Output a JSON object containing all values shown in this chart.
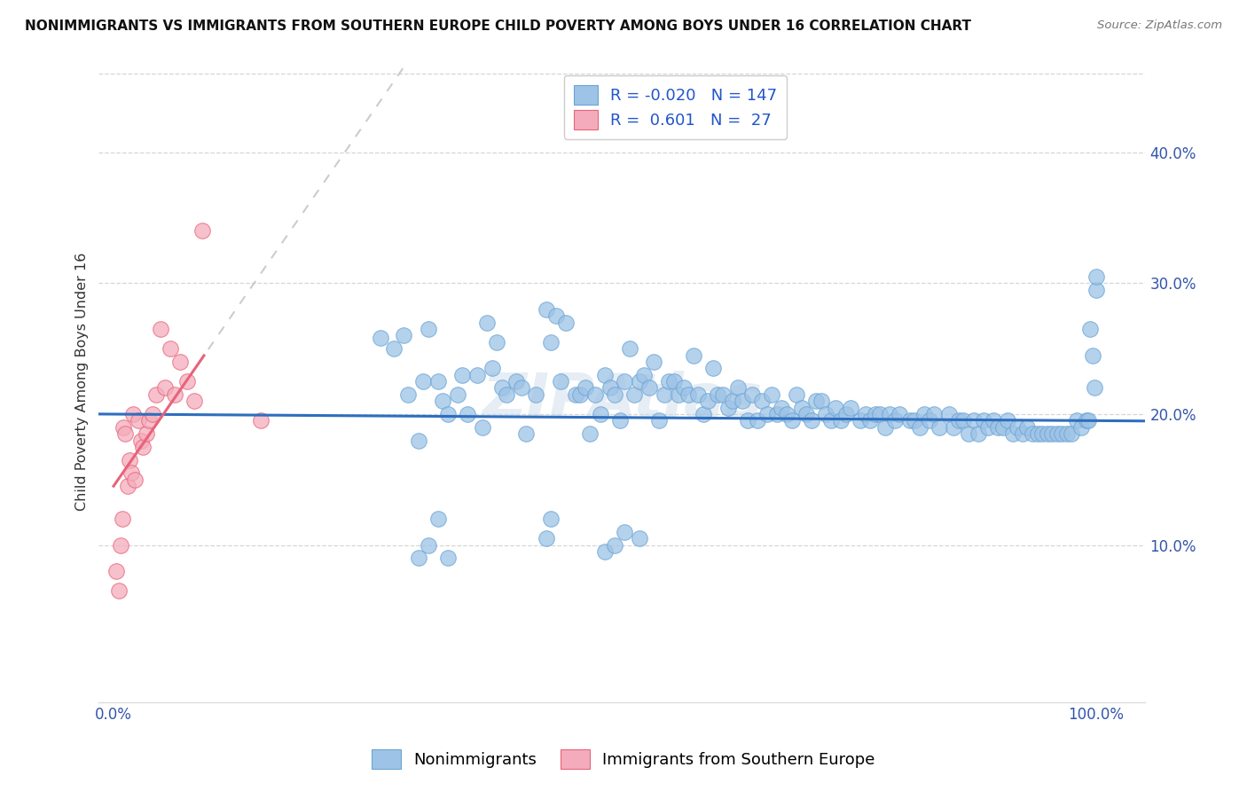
{
  "title": "NONIMMIGRANTS VS IMMIGRANTS FROM SOUTHERN EUROPE CHILD POVERTY AMONG BOYS UNDER 16 CORRELATION CHART",
  "source": "Source: ZipAtlas.com",
  "ylabel": "Child Poverty Among Boys Under 16",
  "blue_R": -0.02,
  "blue_N": 147,
  "pink_R": 0.601,
  "pink_N": 27,
  "blue_color": "#9DC3E6",
  "pink_color": "#F4ACBC",
  "blue_line_color": "#2E6EBF",
  "pink_line_color": "#E8637A",
  "blue_edge_color": "#6BA4D4",
  "pink_edge_color": "#E8637A",
  "background_color": "#ffffff",
  "grid_color": "#cccccc",
  "watermark": "ZIPAtlas",
  "blue_x": [
    0.272,
    0.285,
    0.295,
    0.3,
    0.31,
    0.315,
    0.32,
    0.33,
    0.335,
    0.34,
    0.35,
    0.355,
    0.36,
    0.37,
    0.375,
    0.38,
    0.385,
    0.39,
    0.395,
    0.4,
    0.41,
    0.415,
    0.42,
    0.43,
    0.44,
    0.445,
    0.45,
    0.455,
    0.46,
    0.47,
    0.475,
    0.48,
    0.485,
    0.49,
    0.495,
    0.5,
    0.505,
    0.51,
    0.515,
    0.52,
    0.525,
    0.53,
    0.535,
    0.54,
    0.545,
    0.55,
    0.555,
    0.56,
    0.565,
    0.57,
    0.575,
    0.58,
    0.585,
    0.59,
    0.595,
    0.6,
    0.605,
    0.61,
    0.615,
    0.62,
    0.625,
    0.63,
    0.635,
    0.64,
    0.645,
    0.65,
    0.655,
    0.66,
    0.665,
    0.67,
    0.675,
    0.68,
    0.685,
    0.69,
    0.695,
    0.7,
    0.705,
    0.71,
    0.715,
    0.72,
    0.725,
    0.73,
    0.735,
    0.74,
    0.745,
    0.75,
    0.76,
    0.765,
    0.77,
    0.775,
    0.78,
    0.785,
    0.79,
    0.795,
    0.8,
    0.81,
    0.815,
    0.82,
    0.825,
    0.83,
    0.835,
    0.84,
    0.85,
    0.855,
    0.86,
    0.865,
    0.87,
    0.875,
    0.88,
    0.885,
    0.89,
    0.895,
    0.9,
    0.905,
    0.91,
    0.915,
    0.92,
    0.925,
    0.93,
    0.935,
    0.94,
    0.945,
    0.95,
    0.955,
    0.96,
    0.965,
    0.97,
    0.975,
    0.98,
    0.985,
    0.99,
    0.992,
    0.994,
    0.996,
    0.998,
    1.0,
    1.0,
    0.31,
    0.32,
    0.33,
    0.34,
    0.44,
    0.445,
    0.5,
    0.51,
    0.52,
    0.535
  ],
  "blue_y": [
    0.258,
    0.25,
    0.26,
    0.215,
    0.18,
    0.225,
    0.265,
    0.225,
    0.21,
    0.2,
    0.215,
    0.23,
    0.2,
    0.23,
    0.19,
    0.27,
    0.235,
    0.255,
    0.22,
    0.215,
    0.225,
    0.22,
    0.185,
    0.215,
    0.28,
    0.255,
    0.275,
    0.225,
    0.27,
    0.215,
    0.215,
    0.22,
    0.185,
    0.215,
    0.2,
    0.23,
    0.22,
    0.215,
    0.195,
    0.225,
    0.25,
    0.215,
    0.225,
    0.23,
    0.22,
    0.24,
    0.195,
    0.215,
    0.225,
    0.225,
    0.215,
    0.22,
    0.215,
    0.245,
    0.215,
    0.2,
    0.21,
    0.235,
    0.215,
    0.215,
    0.205,
    0.21,
    0.22,
    0.21,
    0.195,
    0.215,
    0.195,
    0.21,
    0.2,
    0.215,
    0.2,
    0.205,
    0.2,
    0.195,
    0.215,
    0.205,
    0.2,
    0.195,
    0.21,
    0.21,
    0.2,
    0.195,
    0.205,
    0.195,
    0.2,
    0.205,
    0.195,
    0.2,
    0.195,
    0.2,
    0.2,
    0.19,
    0.2,
    0.195,
    0.2,
    0.195,
    0.195,
    0.19,
    0.2,
    0.195,
    0.2,
    0.19,
    0.2,
    0.19,
    0.195,
    0.195,
    0.185,
    0.195,
    0.185,
    0.195,
    0.19,
    0.195,
    0.19,
    0.19,
    0.195,
    0.185,
    0.19,
    0.185,
    0.19,
    0.185,
    0.185,
    0.185,
    0.185,
    0.185,
    0.185,
    0.185,
    0.185,
    0.185,
    0.195,
    0.19,
    0.195,
    0.195,
    0.265,
    0.245,
    0.22,
    0.295,
    0.305,
    0.09,
    0.1,
    0.12,
    0.09,
    0.105,
    0.12,
    0.095,
    0.1,
    0.11,
    0.105
  ],
  "pink_x": [
    0.003,
    0.005,
    0.007,
    0.009,
    0.01,
    0.012,
    0.014,
    0.016,
    0.018,
    0.02,
    0.022,
    0.025,
    0.028,
    0.03,
    0.033,
    0.036,
    0.04,
    0.043,
    0.048,
    0.052,
    0.058,
    0.062,
    0.068,
    0.075,
    0.082,
    0.09,
    0.15
  ],
  "pink_y": [
    0.08,
    0.065,
    0.1,
    0.12,
    0.19,
    0.185,
    0.145,
    0.165,
    0.155,
    0.2,
    0.15,
    0.195,
    0.18,
    0.175,
    0.185,
    0.195,
    0.2,
    0.215,
    0.265,
    0.22,
    0.25,
    0.215,
    0.24,
    0.225,
    0.21,
    0.34,
    0.195
  ],
  "xlim": [
    -0.015,
    1.05
  ],
  "ylim": [
    -0.02,
    0.47
  ],
  "xticks": [
    0.0,
    0.5,
    1.0
  ],
  "xtick_labels": [
    "0.0%",
    "",
    "100.0%"
  ],
  "yticks_right": [
    0.1,
    0.2,
    0.3,
    0.4
  ],
  "ytick_labels_right": [
    "10.0%",
    "20.0%",
    "30.0%",
    "40.0%"
  ]
}
